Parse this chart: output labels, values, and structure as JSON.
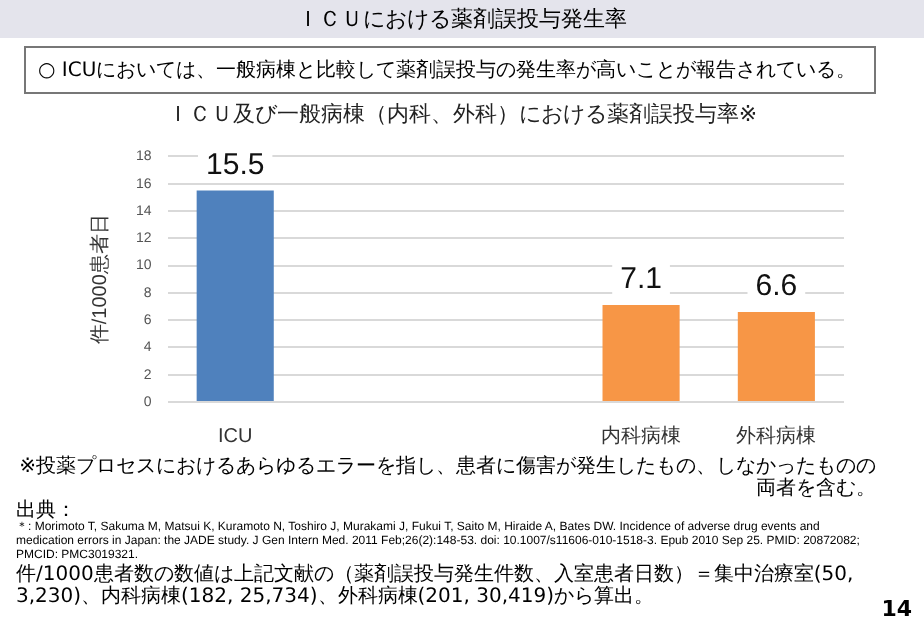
{
  "chart_data": {
    "type": "bar",
    "title": "ＩＣＵ及び一般病棟（内科、外科）における薬剤誤投与率※",
    "subtitle": "○ ICUにおいては、一般病棟と比較して薬剤誤投与の発生率が高いことが報告されている。",
    "ylabel": "件/1000患者日",
    "categories": [
      "ICU",
      null,
      null,
      "内科病棟",
      "外科病棟"
    ],
    "values": [
      15.5,
      null,
      null,
      7.1,
      6.6
    ],
    "colors": [
      "#4f81bd",
      null,
      null,
      "#f79646",
      "#f79646"
    ],
    "ylim": [
      0,
      18
    ],
    "yticks": [
      0,
      2,
      4,
      6,
      8,
      10,
      12,
      14,
      16,
      18
    ],
    "grid": "y",
    "legend": false,
    "data_labels": true,
    "annotations": [
      "ＩＣＵにおける薬剤誤投与発生率",
      "※投薬プロセスにおけるあらゆるエラーを指し、患者に傷害が発生したもの、しなかったものの両者を含む。",
      "出典：",
      "＊: Morimoto T, Sakuma M, Matsui K, Kuramoto N, Toshiro J, Murakami J, Fukui T, Saito M, Hiraide A, Bates DW. Incidence of adverse drug events and medication errors in Japan: the JADE study. J Gen Intern Med. 2011 Feb;26(2):148-53. doi: 10.1007/s11606-010-1518-3. Epub 2010 Sep 25. PMID: 20872082; PMCID: PMC3019321.",
      "件/1000患者数の数値は上記文献の（薬剤誤投与発生件数、入室患者日数）＝集中治療室(50, 3,230)、内科病棟(182, 25,734)、外科病棟(201, 30,419)から算出。",
      "14"
    ]
  }
}
